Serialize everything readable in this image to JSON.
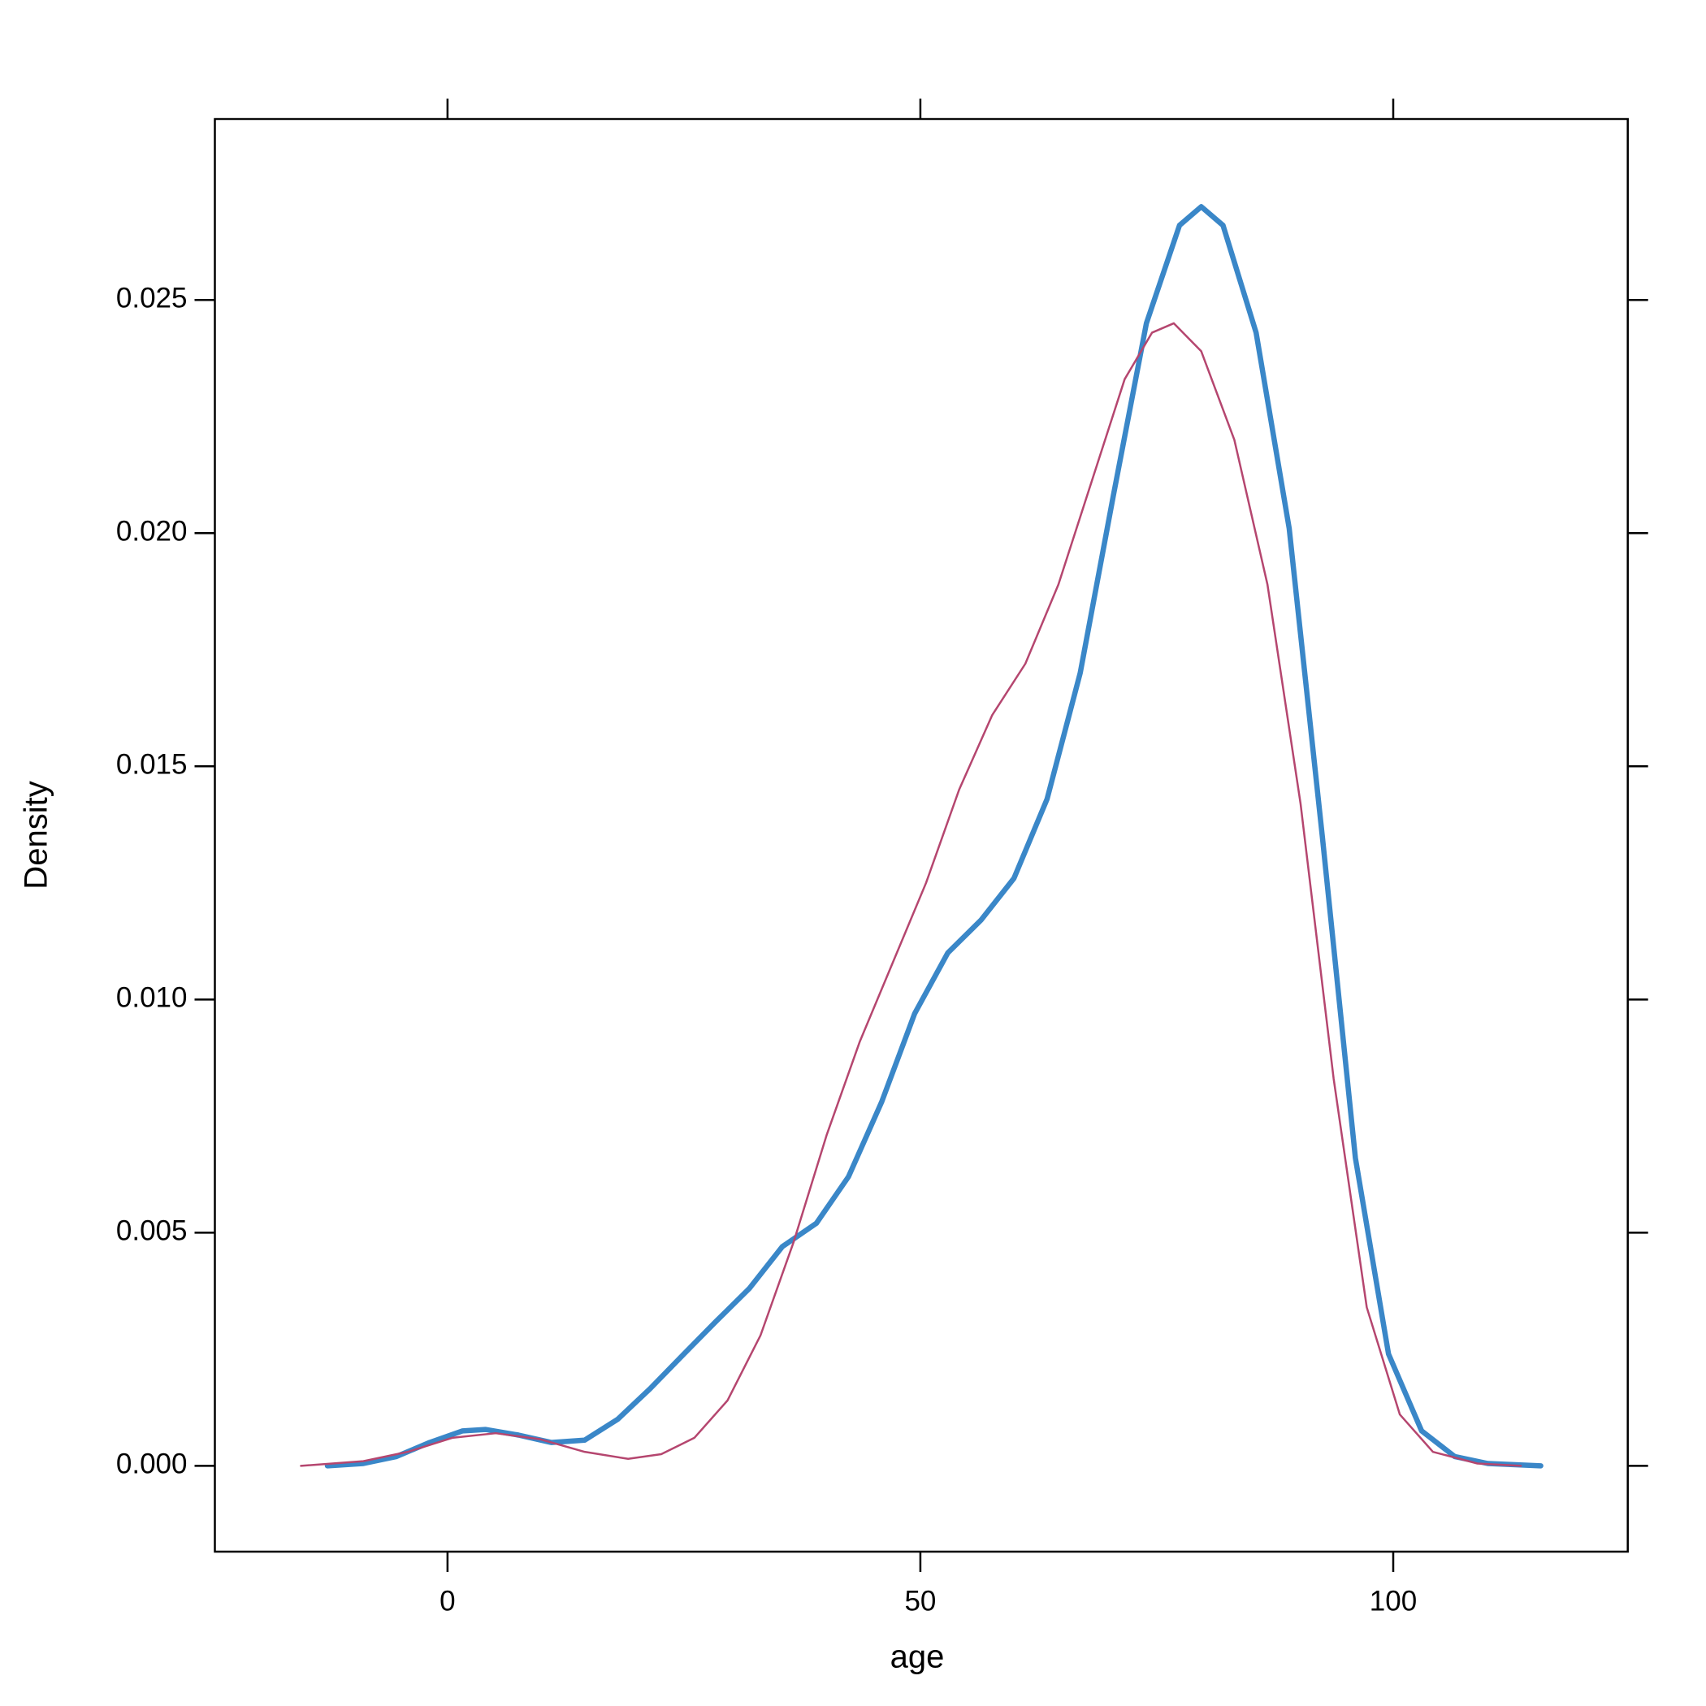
{
  "chart_data": {
    "type": "line",
    "x_label": "age",
    "y_label": "Density",
    "xlim": [
      -24.6,
      124.8
    ],
    "ylim": [
      -0.00184,
      0.02888
    ],
    "xticks": [
      0,
      50,
      100
    ],
    "yticks": [
      {
        "value": 0,
        "label": "0.000"
      },
      {
        "value": 0.005,
        "label": "0.005"
      },
      {
        "value": 0.01,
        "label": "0.010"
      },
      {
        "value": 0.015,
        "label": "0.015"
      },
      {
        "value": 0.02,
        "label": "0.020"
      },
      {
        "value": 0.025,
        "label": "0.025"
      }
    ],
    "series": [
      {
        "color": "#3a87c8",
        "width": 6.5,
        "x": [
          -12.7,
          -8.9,
          -5.4,
          -1.9,
          1.6,
          4,
          7.5,
          11,
          14.5,
          18,
          21.4,
          25,
          28.4,
          31.9,
          35.4,
          39,
          42.4,
          45.9,
          49.4,
          52.9,
          56.4,
          59.9,
          63.4,
          66.9,
          70.4,
          73.9,
          77.4,
          79.7,
          82,
          85.5,
          89,
          92.5,
          96,
          99.5,
          103,
          106.5,
          110,
          115.6
        ],
        "values": [
          0,
          5e-05,
          0.0002,
          0.0005,
          0.00075,
          0.00078,
          0.00066,
          0.0005,
          0.00055,
          0.001,
          0.00165,
          0.0024,
          0.0031,
          0.0038,
          0.0047,
          0.0052,
          0.0062,
          0.0078,
          0.0097,
          0.011,
          0.0117,
          0.0126,
          0.0143,
          0.017,
          0.0208,
          0.0245,
          0.0266,
          0.027,
          0.0266,
          0.0243,
          0.0201,
          0.0135,
          0.0066,
          0.0024,
          0.00075,
          0.0002,
          5e-05,
          0
        ]
      },
      {
        "color": "#b5466f",
        "width": 2.5,
        "x": [
          -15.5,
          -8.9,
          -4.2,
          0.5,
          5.1,
          9.8,
          14.5,
          19.1,
          22.6,
          26.1,
          29.6,
          33.1,
          36.6,
          40.1,
          43.6,
          47.1,
          50.6,
          54.1,
          57.6,
          61.1,
          64.6,
          68.1,
          71.6,
          74.5,
          76.8,
          79.7,
          83.2,
          86.7,
          90.2,
          93.7,
          97.2,
          100.7,
          104.2,
          108.9,
          113.5
        ],
        "values": [
          0,
          0.0001,
          0.0003,
          0.0006,
          0.0007,
          0.00057,
          0.0003,
          0.00015,
          0.00025,
          0.0006,
          0.0014,
          0.0028,
          0.0048,
          0.0071,
          0.0091,
          0.0108,
          0.0125,
          0.0145,
          0.0161,
          0.0172,
          0.0189,
          0.0211,
          0.0233,
          0.0243,
          0.0245,
          0.0239,
          0.022,
          0.0189,
          0.0142,
          0.0083,
          0.0034,
          0.0011,
          0.0003,
          5e-05,
          0
        ]
      }
    ]
  }
}
